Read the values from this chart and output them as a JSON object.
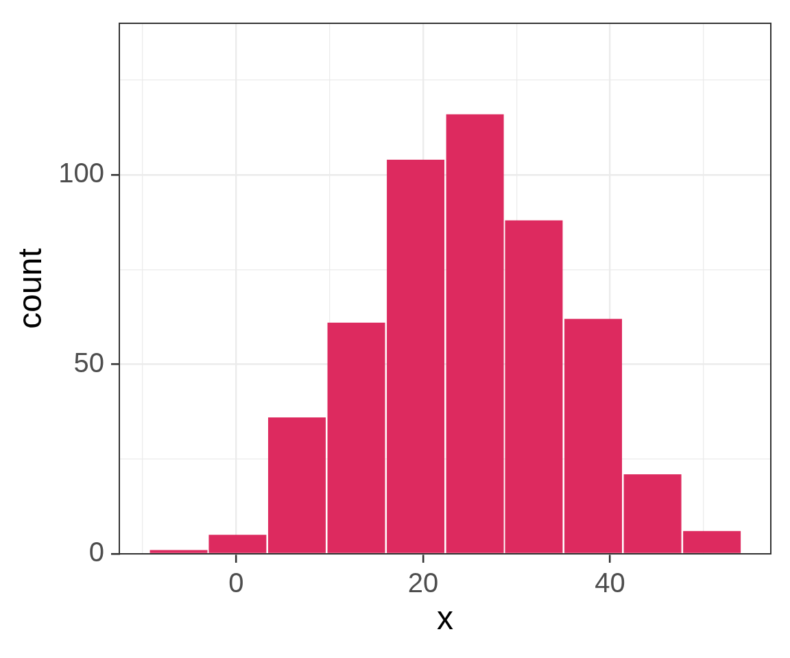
{
  "chart_data": {
    "type": "histogram",
    "xlabel": "x",
    "ylabel": "count",
    "bins": [
      -9.3,
      -3.0,
      3.3,
      9.7,
      16.0,
      22.4,
      28.7,
      35.0,
      41.4,
      47.7,
      54.1
    ],
    "values": [
      1,
      5,
      36,
      61,
      104,
      116,
      88,
      62,
      21,
      6
    ],
    "color": "#dd2a5f",
    "xlim": [
      -12.5,
      57.2
    ],
    "xticks": [
      {
        "value": -10,
        "label": null
      },
      0,
      {
        "value": 10,
        "label": null
      },
      20,
      {
        "value": 30,
        "label": null
      },
      40,
      {
        "value": 50,
        "label": null
      }
    ],
    "ylim": [
      0,
      140
    ],
    "yticks": [
      0,
      {
        "value": 25,
        "label": null
      },
      50,
      {
        "value": 75,
        "label": null
      },
      100,
      {
        "value": 125,
        "label": null
      }
    ],
    "grid": true
  }
}
